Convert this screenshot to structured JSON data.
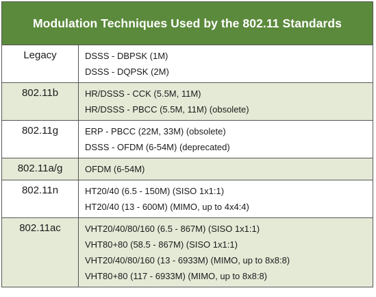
{
  "title": "Modulation Techniques Used by the 802.11 Standards",
  "rows": [
    {
      "standard": "Legacy",
      "shaded": false,
      "modulations": [
        "DSSS - DBPSK (1M)",
        "DSSS - DQPSK (2M)"
      ]
    },
    {
      "standard": "802.11b",
      "shaded": true,
      "modulations": [
        "HR/DSSS - CCK (5.5M, 11M)",
        "HR/DSSS - PBCC (5.5M, 11M) (obsolete)"
      ]
    },
    {
      "standard": "802.11g",
      "shaded": false,
      "modulations": [
        "ERP - PBCC (22M, 33M) (obsolete)",
        "DSSS - OFDM (6-54M) (deprecated)"
      ]
    },
    {
      "standard": "802.11a/g",
      "shaded": true,
      "modulations": [
        "OFDM (6-54M)"
      ]
    },
    {
      "standard": "802.11n",
      "shaded": false,
      "modulations": [
        "HT20/40 (6.5 - 150M) (SISO 1x1:1)",
        "HT20/40 (13 - 600M) (MIMO, up to 4x4:4)"
      ]
    },
    {
      "standard": "802.11ac",
      "shaded": true,
      "modulations": [
        "VHT20/40/80/160 (6.5 - 867M) (SISO 1x1:1)",
        "VHT80+80 (58.5 - 867M) (SISO 1x1:1)",
        "VHT20/40/80/160 (13 - 6933M) (MIMO, up to 8x8:8)",
        "VHT80+80 (117 - 6933M) (MIMO, up to 8x8:8)"
      ]
    }
  ]
}
